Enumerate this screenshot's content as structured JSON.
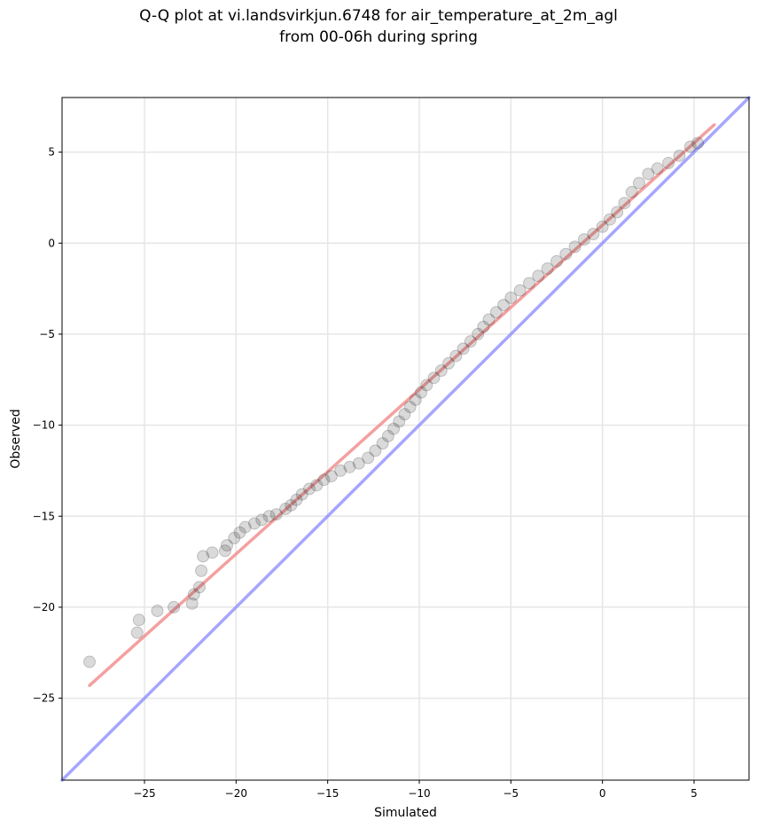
{
  "chart_data": {
    "type": "scatter",
    "title_line1": "Q-Q plot at vi.landsvirkjun.6748 for air_temperature_at_2m_agl",
    "title_line2": "from 00-06h during spring",
    "xlabel": "Simulated",
    "ylabel": "Observed",
    "xlim": [
      -29.5,
      8
    ],
    "ylim": [
      -29.5,
      8
    ],
    "xticks": [
      -25,
      -20,
      -15,
      -10,
      -5,
      0,
      5
    ],
    "yticks": [
      -25,
      -20,
      -15,
      -10,
      -5,
      0,
      5
    ],
    "grid": true,
    "points_color": "#333333",
    "fit_line_color": "#f08080",
    "identity_line_color": "#8888ff",
    "fit_line": [
      [
        -28,
        -24.3
      ],
      [
        6.1,
        6.5
      ]
    ],
    "identity_line": [
      [
        -29.5,
        -29.5
      ],
      [
        8,
        8
      ]
    ],
    "points": [
      [
        -28,
        -23
      ],
      [
        -25.3,
        -20.7
      ],
      [
        -25.4,
        -21.4
      ],
      [
        -24.3,
        -20.2
      ],
      [
        -23.4,
        -20.0
      ],
      [
        -22.4,
        -19.8
      ],
      [
        -22.3,
        -19.3
      ],
      [
        -22.0,
        -18.9
      ],
      [
        -21.9,
        -18.0
      ],
      [
        -21.8,
        -17.2
      ],
      [
        -21.3,
        -17.0
      ],
      [
        -20.6,
        -16.9
      ],
      [
        -20.5,
        -16.6
      ],
      [
        -20.1,
        -16.2
      ],
      [
        -19.8,
        -15.9
      ],
      [
        -19.5,
        -15.6
      ],
      [
        -19.0,
        -15.4
      ],
      [
        -18.6,
        -15.2
      ],
      [
        -18.2,
        -15.0
      ],
      [
        -17.8,
        -14.9
      ],
      [
        -17.3,
        -14.6
      ],
      [
        -17.0,
        -14.4
      ],
      [
        -16.7,
        -14.1
      ],
      [
        -16.4,
        -13.8
      ],
      [
        -16.0,
        -13.5
      ],
      [
        -15.6,
        -13.3
      ],
      [
        -15.2,
        -13.0
      ],
      [
        -14.8,
        -12.8
      ],
      [
        -14.3,
        -12.5
      ],
      [
        -13.8,
        -12.3
      ],
      [
        -13.3,
        -12.1
      ],
      [
        -12.8,
        -11.8
      ],
      [
        -12.4,
        -11.4
      ],
      [
        -12.0,
        -11.0
      ],
      [
        -11.7,
        -10.6
      ],
      [
        -11.4,
        -10.2
      ],
      [
        -11.1,
        -9.8
      ],
      [
        -10.8,
        -9.4
      ],
      [
        -10.5,
        -9.0
      ],
      [
        -10.2,
        -8.6
      ],
      [
        -9.9,
        -8.2
      ],
      [
        -9.6,
        -7.8
      ],
      [
        -9.2,
        -7.4
      ],
      [
        -8.8,
        -7.0
      ],
      [
        -8.4,
        -6.6
      ],
      [
        -8.0,
        -6.2
      ],
      [
        -7.6,
        -5.8
      ],
      [
        -7.2,
        -5.4
      ],
      [
        -6.8,
        -5.0
      ],
      [
        -6.5,
        -4.6
      ],
      [
        -6.2,
        -4.2
      ],
      [
        -5.8,
        -3.8
      ],
      [
        -5.4,
        -3.4
      ],
      [
        -5.0,
        -3.0
      ],
      [
        -4.5,
        -2.6
      ],
      [
        -4.0,
        -2.2
      ],
      [
        -3.5,
        -1.8
      ],
      [
        -3.0,
        -1.4
      ],
      [
        -2.5,
        -1.0
      ],
      [
        -2.0,
        -0.6
      ],
      [
        -1.5,
        -0.2
      ],
      [
        -1.0,
        0.2
      ],
      [
        -0.5,
        0.5
      ],
      [
        0.0,
        0.9
      ],
      [
        0.4,
        1.3
      ],
      [
        0.8,
        1.7
      ],
      [
        1.2,
        2.2
      ],
      [
        1.6,
        2.8
      ],
      [
        2.0,
        3.3
      ],
      [
        2.5,
        3.8
      ],
      [
        3.0,
        4.1
      ],
      [
        3.6,
        4.4
      ],
      [
        4.2,
        4.8
      ],
      [
        4.8,
        5.3
      ],
      [
        5.2,
        5.5
      ]
    ]
  }
}
